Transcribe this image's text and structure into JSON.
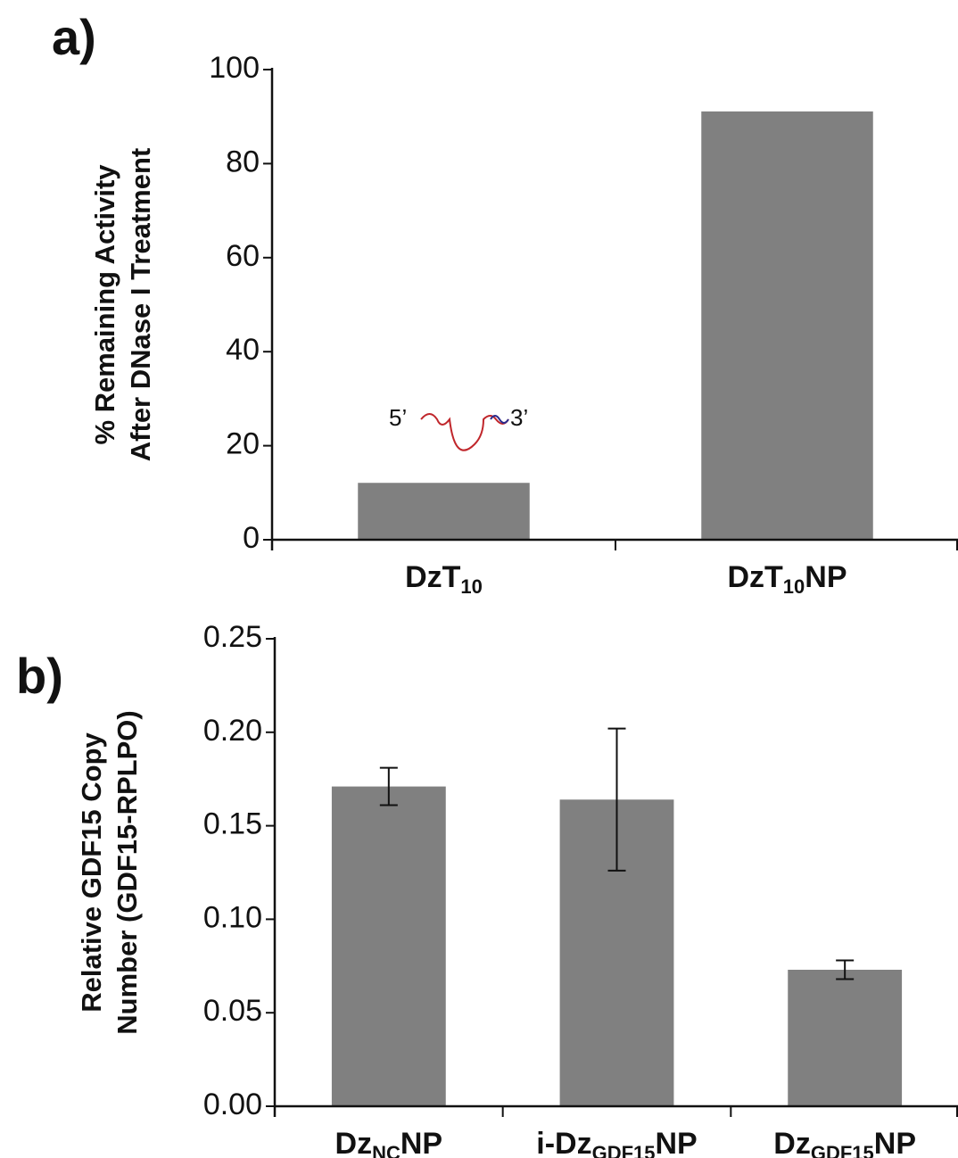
{
  "chart_data": [
    {
      "type": "bar",
      "panel_label": "a)",
      "ylabel": [
        "% Remaining Activity",
        "After DNase I Treatment"
      ],
      "categories": [
        [
          "DzT",
          "10"
        ],
        [
          "DzT",
          "10",
          "NP"
        ]
      ],
      "values": [
        12.1,
        91.1
      ],
      "color": "#808080",
      "ylim": [
        0,
        100
      ],
      "yticks": [
        0,
        20,
        40,
        60,
        80,
        100
      ],
      "annotations": [
        "5’",
        "3’",
        "5’"
      ]
    },
    {
      "type": "bar",
      "panel_label": "b)",
      "ylabel": [
        "Relative GDF15 Copy",
        "Number (GDF15-RPLPO)"
      ],
      "categories": [
        [
          "Dz",
          "NC",
          "NP"
        ],
        [
          "i-Dz",
          "GDF15",
          "NP"
        ],
        [
          "Dz",
          "GDF15",
          "NP"
        ]
      ],
      "values": [
        0.171,
        0.164,
        0.073
      ],
      "errors": [
        0.01,
        0.038,
        0.005
      ],
      "color": "#808080",
      "ylim": [
        0,
        0.25
      ],
      "yticks": [
        {
          "value": 0,
          "label": "0.00"
        },
        0.05,
        {
          "value": 0.1,
          "label": "0.10"
        },
        0.15,
        {
          "value": 0.2,
          "label": "0.20"
        },
        0.25
      ]
    }
  ]
}
